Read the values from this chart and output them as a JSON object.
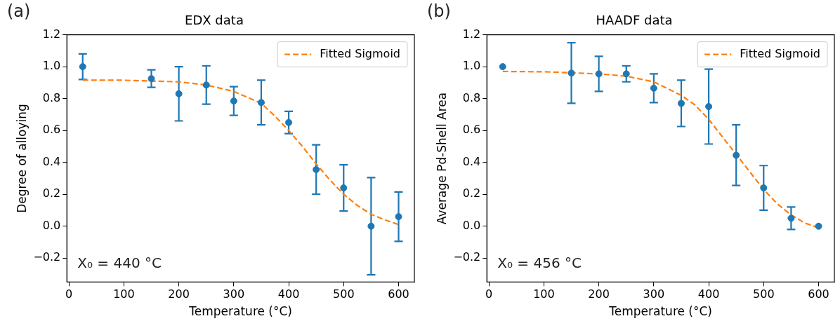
{
  "chart_data": [
    {
      "type": "scatter",
      "title": "EDX data",
      "xlabel": "Temperature (°C)",
      "ylabel": "Degree of alloying",
      "annotations": [
        "(a)",
        "X₀ = 440 °C"
      ],
      "xlim": [
        -3.75,
        628.75
      ],
      "xticks": [
        0,
        100,
        200,
        300,
        400,
        500,
        600
      ],
      "ylim": [
        -0.35,
        1.2
      ],
      "yticks": [
        {
          "value": -0.2,
          "label": "−0.2"
        },
        {
          "value": 0,
          "label": "0.0"
        },
        0.2,
        0.4,
        0.6,
        0.8,
        {
          "value": 1,
          "label": "1.0"
        },
        1.2
      ],
      "grid": false,
      "legend": "top right",
      "marker": "circle",
      "series": [
        {
          "type": "scatter",
          "color": "#1f77b4",
          "x": [
            25,
            150,
            200,
            250,
            300,
            350,
            400,
            450,
            500,
            550,
            600
          ],
          "values": [
            1.0,
            0.925,
            0.83,
            0.885,
            0.785,
            0.775,
            0.65,
            0.355,
            0.24,
            0.0,
            0.06
          ],
          "errors": [
            0.08,
            0.055,
            0.17,
            0.12,
            0.09,
            0.14,
            0.07,
            0.155,
            0.145,
            0.305,
            0.155
          ]
        },
        {
          "type": "line",
          "name": "Fitted Sigmoid",
          "color": "#ff7f0e",
          "line_style": "dashed",
          "marker": "none",
          "x": [
            25,
            100,
            200,
            250,
            300,
            350,
            375,
            400,
            425,
            450,
            475,
            500,
            525,
            550,
            575,
            600
          ],
          "values": [
            0.915,
            0.915,
            0.905,
            0.885,
            0.845,
            0.77,
            0.69,
            0.6,
            0.5,
            0.39,
            0.29,
            0.2,
            0.13,
            0.075,
            0.04,
            0.01
          ]
        }
      ]
    },
    {
      "type": "scatter",
      "title": "HAADF data",
      "xlabel": "Temperature (°C)",
      "ylabel": "Average Pd-Shell Area",
      "annotations": [
        "(b)",
        "X₀ = 456 °C"
      ],
      "xlim": [
        -3.75,
        628.75
      ],
      "xticks": [
        0,
        100,
        200,
        300,
        400,
        500,
        600
      ],
      "ylim": [
        -0.35,
        1.2
      ],
      "yticks": [
        {
          "value": -0.2,
          "label": "−0.2"
        },
        {
          "value": 0,
          "label": "0.0"
        },
        0.2,
        0.4,
        0.6,
        0.8,
        {
          "value": 1,
          "label": "1.0"
        },
        1.2
      ],
      "grid": false,
      "legend": "top right",
      "marker": "circle",
      "series": [
        {
          "type": "scatter",
          "color": "#1f77b4",
          "x": [
            25,
            150,
            200,
            250,
            300,
            350,
            400,
            450,
            500,
            550,
            600
          ],
          "values": [
            1.0,
            0.96,
            0.955,
            0.955,
            0.865,
            0.77,
            0.75,
            0.445,
            0.24,
            0.05,
            0.0
          ],
          "errors": [
            null,
            0.19,
            0.11,
            0.05,
            0.09,
            0.145,
            0.235,
            0.19,
            0.14,
            0.07,
            null
          ]
        },
        {
          "type": "line",
          "name": "Fitted Sigmoid",
          "color": "#ff7f0e",
          "line_style": "dashed",
          "marker": "none",
          "x": [
            25,
            100,
            200,
            250,
            300,
            350,
            375,
            400,
            425,
            450,
            475,
            500,
            525,
            550,
            575,
            600
          ],
          "values": [
            0.97,
            0.968,
            0.955,
            0.94,
            0.905,
            0.82,
            0.76,
            0.67,
            0.56,
            0.45,
            0.34,
            0.23,
            0.14,
            0.07,
            0.02,
            -0.01
          ]
        }
      ]
    }
  ]
}
